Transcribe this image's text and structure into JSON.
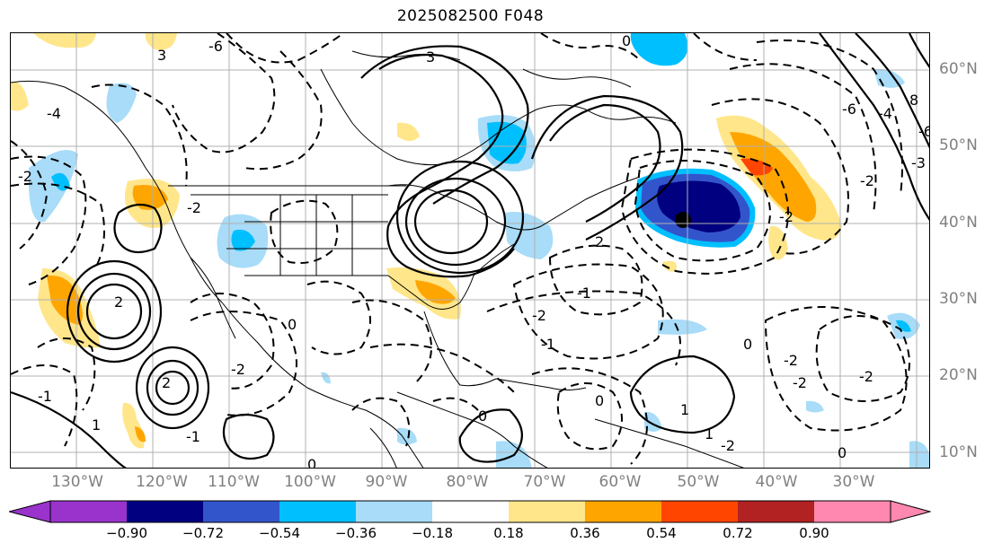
{
  "title": "2025082500 F048",
  "axes": {
    "lon_labels": [
      "130°W",
      "120°W",
      "110°W",
      "100°W",
      "90°W",
      "80°W",
      "70°W",
      "60°W",
      "50°W",
      "40°W",
      "30°W"
    ],
    "lat_labels": [
      "60°N",
      "50°N",
      "40°N",
      "30°N",
      "20°N",
      "10°N"
    ]
  },
  "colorbar": {
    "ticks": [
      "−0.90",
      "−0.72",
      "−0.54",
      "−0.36",
      "−0.18",
      "0.18",
      "0.36",
      "0.54",
      "0.72",
      "0.90"
    ],
    "colors": [
      "#9933cc",
      "#000080",
      "#3355cc",
      "#00bfff",
      "#a8dcf8",
      "#ffffff",
      "#ffe68a",
      "#ffa500",
      "#ff4500",
      "#b22222",
      "#ff88b0"
    ]
  },
  "contour_labels": [
    "-6",
    "3",
    "3",
    "-4",
    "-2",
    "-2",
    "2",
    "-2",
    "-1",
    "2",
    "1",
    "-1",
    "-2",
    "0",
    "0",
    "0",
    "0",
    "0",
    "1",
    "-1",
    "8",
    "-6",
    "-4",
    "-6",
    "-3",
    "-2",
    "2",
    "-2",
    "-1",
    "0",
    "0",
    "-2",
    "-2",
    "-2",
    "-2",
    "1"
  ],
  "palette": {
    "axes_text": "#808080",
    "contour": "#000000",
    "map_lines": "#000000"
  }
}
